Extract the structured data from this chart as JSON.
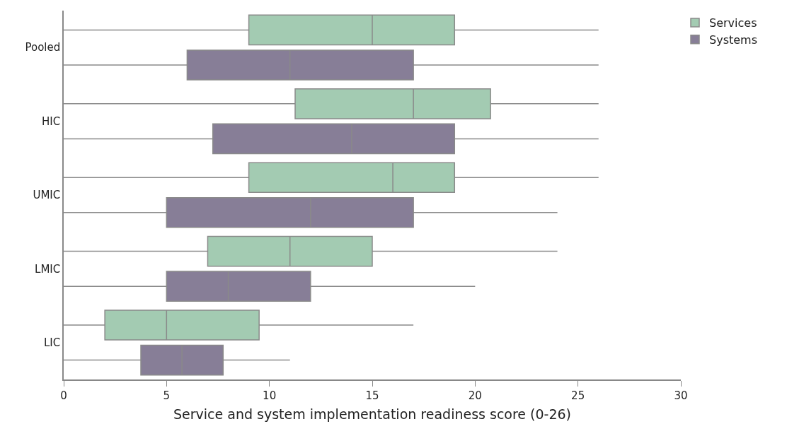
{
  "chart_data": {
    "type": "box",
    "orientation": "horizontal",
    "xlabel": "Service and system implementation readiness score (0-26)",
    "categories": [
      "Pooled",
      "HIC",
      "UMIC",
      "LMIC",
      "LIC"
    ],
    "xlim": [
      0,
      30
    ],
    "xticks": [
      0,
      5,
      10,
      15,
      20,
      25,
      30
    ],
    "legend": "top right",
    "series": [
      {
        "name": "Services",
        "color": "#a3cbb2",
        "boxes": [
          {
            "low": 0,
            "q1": 9,
            "median": 15,
            "q3": 19,
            "high": 26
          },
          {
            "low": 0,
            "q1": 11.25,
            "median": 17,
            "q3": 20.75,
            "high": 26
          },
          {
            "low": 0,
            "q1": 9,
            "median": 16,
            "q3": 19,
            "high": 26
          },
          {
            "low": 0,
            "q1": 7,
            "median": 11,
            "q3": 15,
            "high": 24
          },
          {
            "low": 0,
            "q1": 2,
            "median": 5,
            "q3": 9.5,
            "high": 17
          }
        ]
      },
      {
        "name": "Systems",
        "color": "#877e97",
        "boxes": [
          {
            "low": 0,
            "q1": 6,
            "median": 11,
            "q3": 17,
            "high": 26
          },
          {
            "low": 0,
            "q1": 7.25,
            "median": 14,
            "q3": 19,
            "high": 26
          },
          {
            "low": 0,
            "q1": 5,
            "median": 12,
            "q3": 17,
            "high": 24
          },
          {
            "low": 0,
            "q1": 5,
            "median": 8,
            "q3": 12,
            "high": 20
          },
          {
            "low": 0,
            "q1": 3.75,
            "median": 5.75,
            "q3": 7.75,
            "high": 11
          }
        ]
      }
    ]
  }
}
